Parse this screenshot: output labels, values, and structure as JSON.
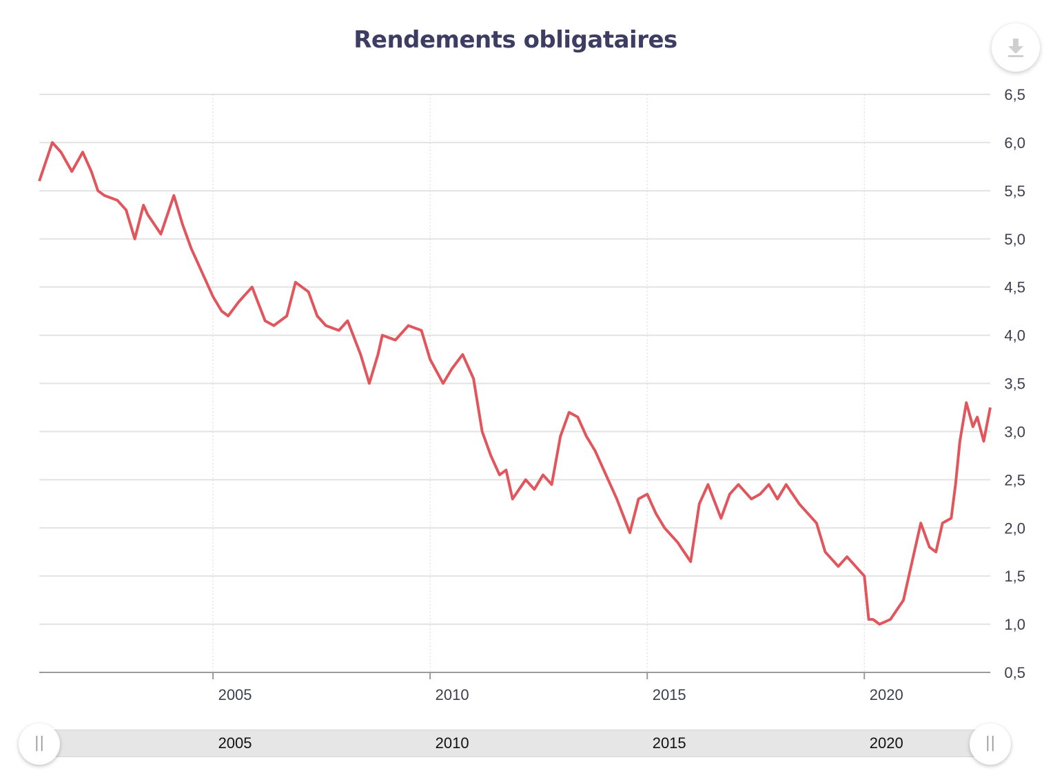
{
  "title": "Rendements obligataires",
  "download_icon": "download-icon",
  "colors": {
    "line": "#e0565c",
    "grid": "#e2e2e2",
    "text": "#3d3d64",
    "axis": "#9a9a9a"
  },
  "chart_data": {
    "type": "line",
    "title": "Rendements obligataires",
    "xlabel": "",
    "ylabel": "",
    "x_range": [
      2001.0,
      2022.9
    ],
    "ylim": [
      0.5,
      6.5
    ],
    "y_axis_position": "right",
    "x_ticks": [
      "2005",
      "2010",
      "2015",
      "2020"
    ],
    "y_ticks": [
      "0,5",
      "1,0",
      "1,5",
      "2,0",
      "2,5",
      "3,0",
      "3,5",
      "4,0",
      "4,5",
      "5,0",
      "5,5",
      "6,0",
      "6,5"
    ],
    "grid": true,
    "legend": "none",
    "series": [
      {
        "x": [
          2001.0,
          2001.3,
          2001.5,
          2001.75,
          2002.0,
          2002.2,
          2002.35,
          2002.5,
          2002.8,
          2003.0,
          2003.2,
          2003.4,
          2003.5,
          2003.65,
          2003.8,
          2004.1,
          2004.3,
          2004.5,
          2004.7,
          2005.0,
          2005.2,
          2005.35,
          2005.6,
          2005.9,
          2006.2,
          2006.4,
          2006.7,
          2006.9,
          2007.2,
          2007.4,
          2007.6,
          2007.9,
          2008.1,
          2008.4,
          2008.6,
          2008.8,
          2008.9,
          2009.2,
          2009.5,
          2009.8,
          2010.0,
          2010.3,
          2010.5,
          2010.75,
          2011.0,
          2011.2,
          2011.4,
          2011.6,
          2011.75,
          2011.9,
          2012.2,
          2012.4,
          2012.6,
          2012.8,
          2013.0,
          2013.2,
          2013.4,
          2013.6,
          2013.8,
          2014.0,
          2014.3,
          2014.6,
          2014.8,
          2015.0,
          2015.2,
          2015.4,
          2015.7,
          2016.0,
          2016.2,
          2016.4,
          2016.7,
          2016.9,
          2017.1,
          2017.4,
          2017.6,
          2017.8,
          2018.0,
          2018.2,
          2018.5,
          2018.7,
          2018.9,
          2019.1,
          2019.4,
          2019.6,
          2019.8,
          2020.0,
          2020.1,
          2020.2,
          2020.35,
          2020.6,
          2020.9,
          2021.1,
          2021.3,
          2021.5,
          2021.65,
          2021.8,
          2022.0,
          2022.1,
          2022.2,
          2022.35,
          2022.5,
          2022.6,
          2022.75,
          2022.9
        ],
        "y": [
          5.6,
          6.0,
          5.9,
          5.7,
          5.9,
          5.7,
          5.5,
          5.45,
          5.4,
          5.3,
          5.0,
          5.35,
          5.25,
          5.15,
          5.05,
          5.45,
          5.15,
          4.9,
          4.7,
          4.4,
          4.25,
          4.2,
          4.35,
          4.5,
          4.15,
          4.1,
          4.2,
          4.55,
          4.45,
          4.2,
          4.1,
          4.05,
          4.15,
          3.8,
          3.5,
          3.8,
          4.0,
          3.95,
          4.1,
          4.05,
          3.75,
          3.5,
          3.65,
          3.8,
          3.55,
          3.0,
          2.75,
          2.55,
          2.6,
          2.3,
          2.5,
          2.4,
          2.55,
          2.45,
          2.95,
          3.2,
          3.15,
          2.95,
          2.8,
          2.6,
          2.3,
          1.95,
          2.3,
          2.35,
          2.15,
          2.0,
          1.85,
          1.65,
          2.25,
          2.45,
          2.1,
          2.35,
          2.45,
          2.3,
          2.35,
          2.45,
          2.3,
          2.45,
          2.25,
          2.15,
          2.05,
          1.75,
          1.6,
          1.7,
          1.6,
          1.5,
          1.05,
          1.05,
          1.0,
          1.05,
          1.25,
          1.65,
          2.05,
          1.8,
          1.75,
          2.05,
          2.1,
          2.45,
          2.9,
          3.3,
          3.05,
          3.15,
          2.9,
          3.25
        ]
      }
    ],
    "navigator": {
      "labels": [
        "2005",
        "2010",
        "2015",
        "2020"
      ]
    }
  }
}
